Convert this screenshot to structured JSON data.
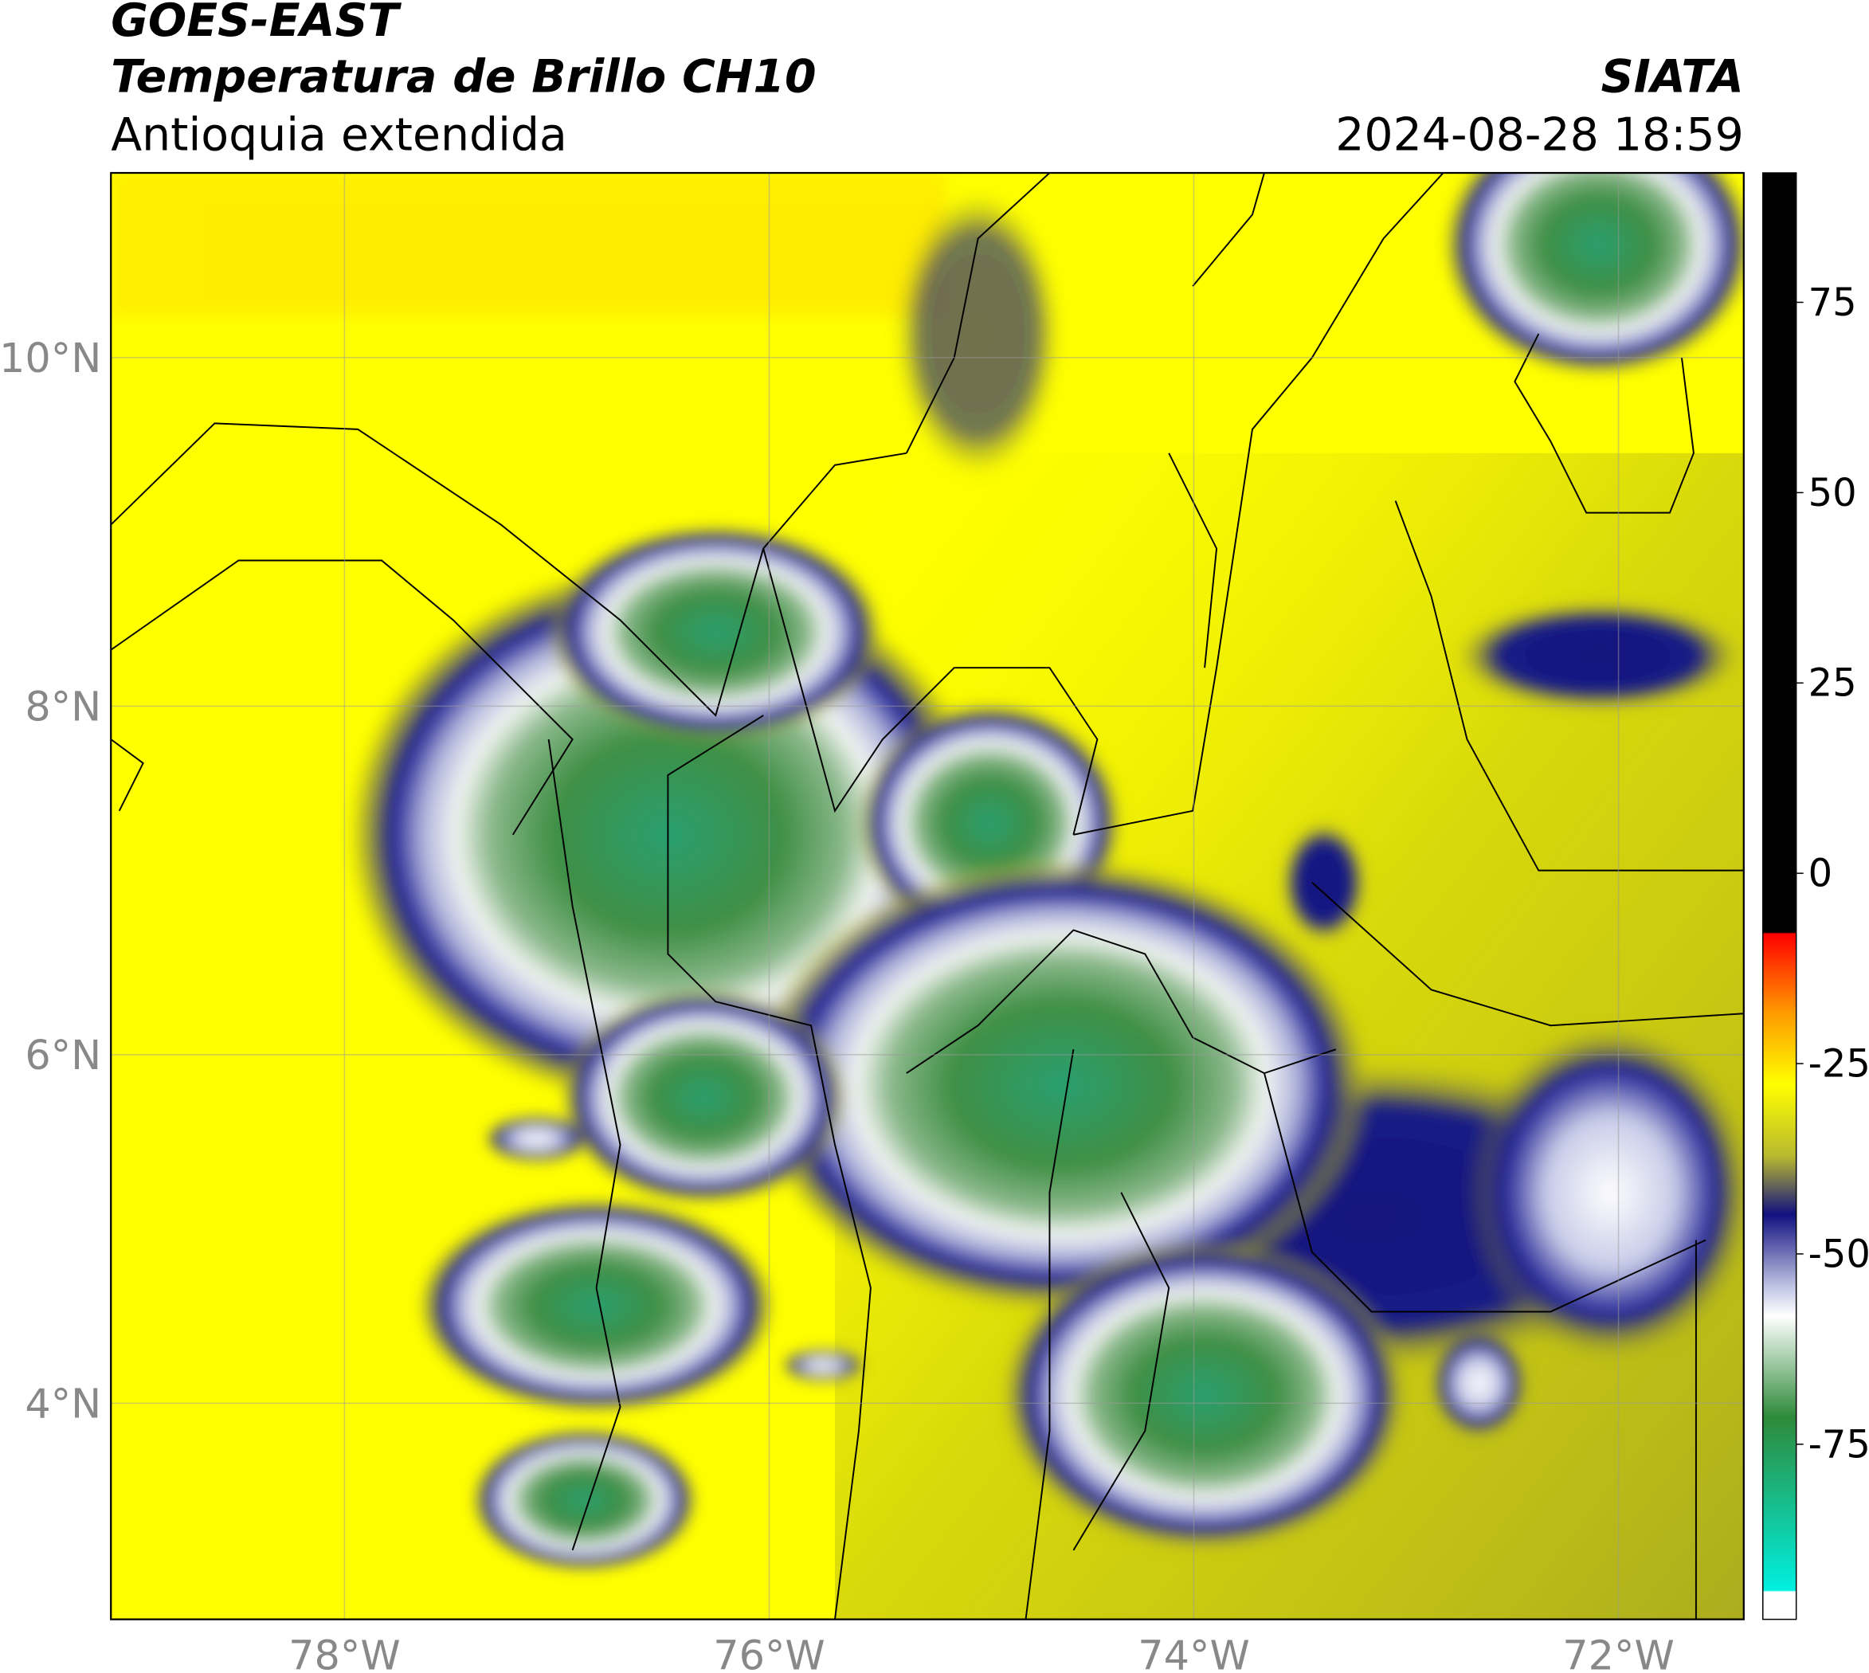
{
  "header": {
    "title_1": "GOES-EAST",
    "title_2": "Temperatura de Brillo CH10",
    "subtitle": "Antioquia extendida",
    "source": "SIATA",
    "timestamp": "2024-08-28 18:59"
  },
  "map": {
    "xlim": [
      -79.1,
      -71.41
    ],
    "ylim": [
      2.76,
      11.06
    ],
    "xticks": [
      {
        "value": -78,
        "label": "78°W"
      },
      {
        "value": -76,
        "label": "76°W"
      },
      {
        "value": -74,
        "label": "74°W"
      },
      {
        "value": -72,
        "label": "72°W"
      }
    ],
    "yticks": [
      {
        "value": 10,
        "label": "10°N"
      },
      {
        "value": 8,
        "label": "8°N"
      },
      {
        "value": 6,
        "label": "6°N"
      },
      {
        "value": 4,
        "label": "4°N"
      }
    ],
    "grid": true
  },
  "colorbar": {
    "lim": [
      -98,
      92
    ],
    "ticks": [
      75,
      50,
      25,
      0,
      -25,
      -50,
      -75
    ]
  }
}
